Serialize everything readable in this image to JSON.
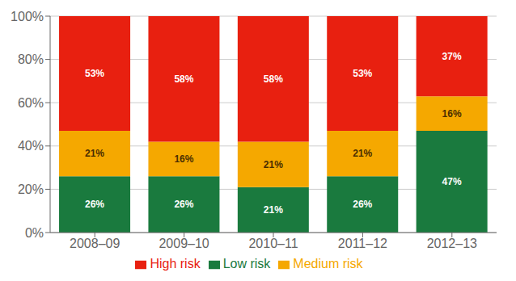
{
  "chart_data": {
    "type": "bar",
    "stacked": true,
    "categories": [
      "2008–09",
      "2009–10",
      "2010–11",
      "2011–12",
      "2012–13"
    ],
    "series": [
      {
        "name": "Low risk",
        "color": "#1a7a3e",
        "values": [
          26,
          26,
          21,
          26,
          47
        ],
        "value_labels": [
          "26%",
          "26%",
          "21%",
          "26%",
          "47%"
        ]
      },
      {
        "name": "Medium risk",
        "color": "#f5a800",
        "values": [
          21,
          16,
          21,
          21,
          16
        ],
        "value_labels": [
          "21%",
          "16%",
          "21%",
          "21%",
          "16%"
        ]
      },
      {
        "name": "High risk",
        "color": "#e82010",
        "values": [
          53,
          58,
          58,
          53,
          37
        ],
        "value_labels": [
          "53%",
          "58%",
          "58%",
          "53%",
          "37%"
        ]
      }
    ],
    "ylim": [
      0,
      100
    ],
    "yticks": [
      {
        "value": 0,
        "label": "0%"
      },
      {
        "value": 20,
        "label": "20%"
      },
      {
        "value": 40,
        "label": "40%"
      },
      {
        "value": 60,
        "label": "60%"
      },
      {
        "value": 80,
        "label": "80%"
      },
      {
        "value": 100,
        "label": "100%"
      }
    ],
    "grid": true,
    "legend": "bottom",
    "data_labels": true
  }
}
